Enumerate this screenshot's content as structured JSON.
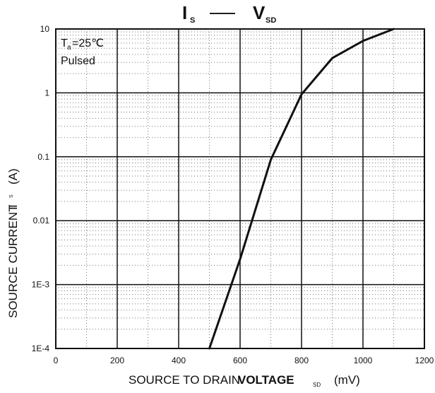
{
  "chart_data": {
    "type": "line",
    "title": {
      "left_main": "I",
      "left_sub": "S",
      "connector": "——",
      "right_main": "V",
      "right_sub": "SD"
    },
    "xlabel": {
      "main": "SOURCE TO DRAIN",
      "emphasis": "VOLTAGE",
      "sub": "SD",
      "unit": "(mV)"
    },
    "ylabel": {
      "main": "SOURCE CURRENT",
      "symbol": "I",
      "sub": "S",
      "unit": "(A)"
    },
    "annotation": {
      "line1_main": "T",
      "line1_sub": "a",
      "line1_value": "=25℃",
      "line2": "Pulsed"
    },
    "x_ticks": [
      0,
      200,
      400,
      600,
      800,
      1000,
      1200
    ],
    "x_tick_labels": [
      "0",
      "200",
      "400",
      "600",
      "800",
      "1000",
      "1200"
    ],
    "y_ticks": [
      0.0001,
      0.001,
      0.01,
      0.1,
      1,
      10
    ],
    "y_tick_labels": [
      "1E-4",
      "1E-3",
      "0.01",
      "0.1",
      "1",
      "10"
    ],
    "xlim": [
      0,
      1200
    ],
    "ylim": [
      0.0001,
      10
    ],
    "y_scale": "log",
    "grid": true,
    "x": [
      500,
      600,
      700,
      800,
      900,
      1000,
      1100
    ],
    "y": [
      0.0001,
      0.0025,
      0.09,
      0.95,
      3.5,
      6.5,
      10
    ],
    "colors": {
      "line": "#111111",
      "major_grid": "#111111",
      "minor_grid": "#777777",
      "background": "#ffffff"
    }
  }
}
